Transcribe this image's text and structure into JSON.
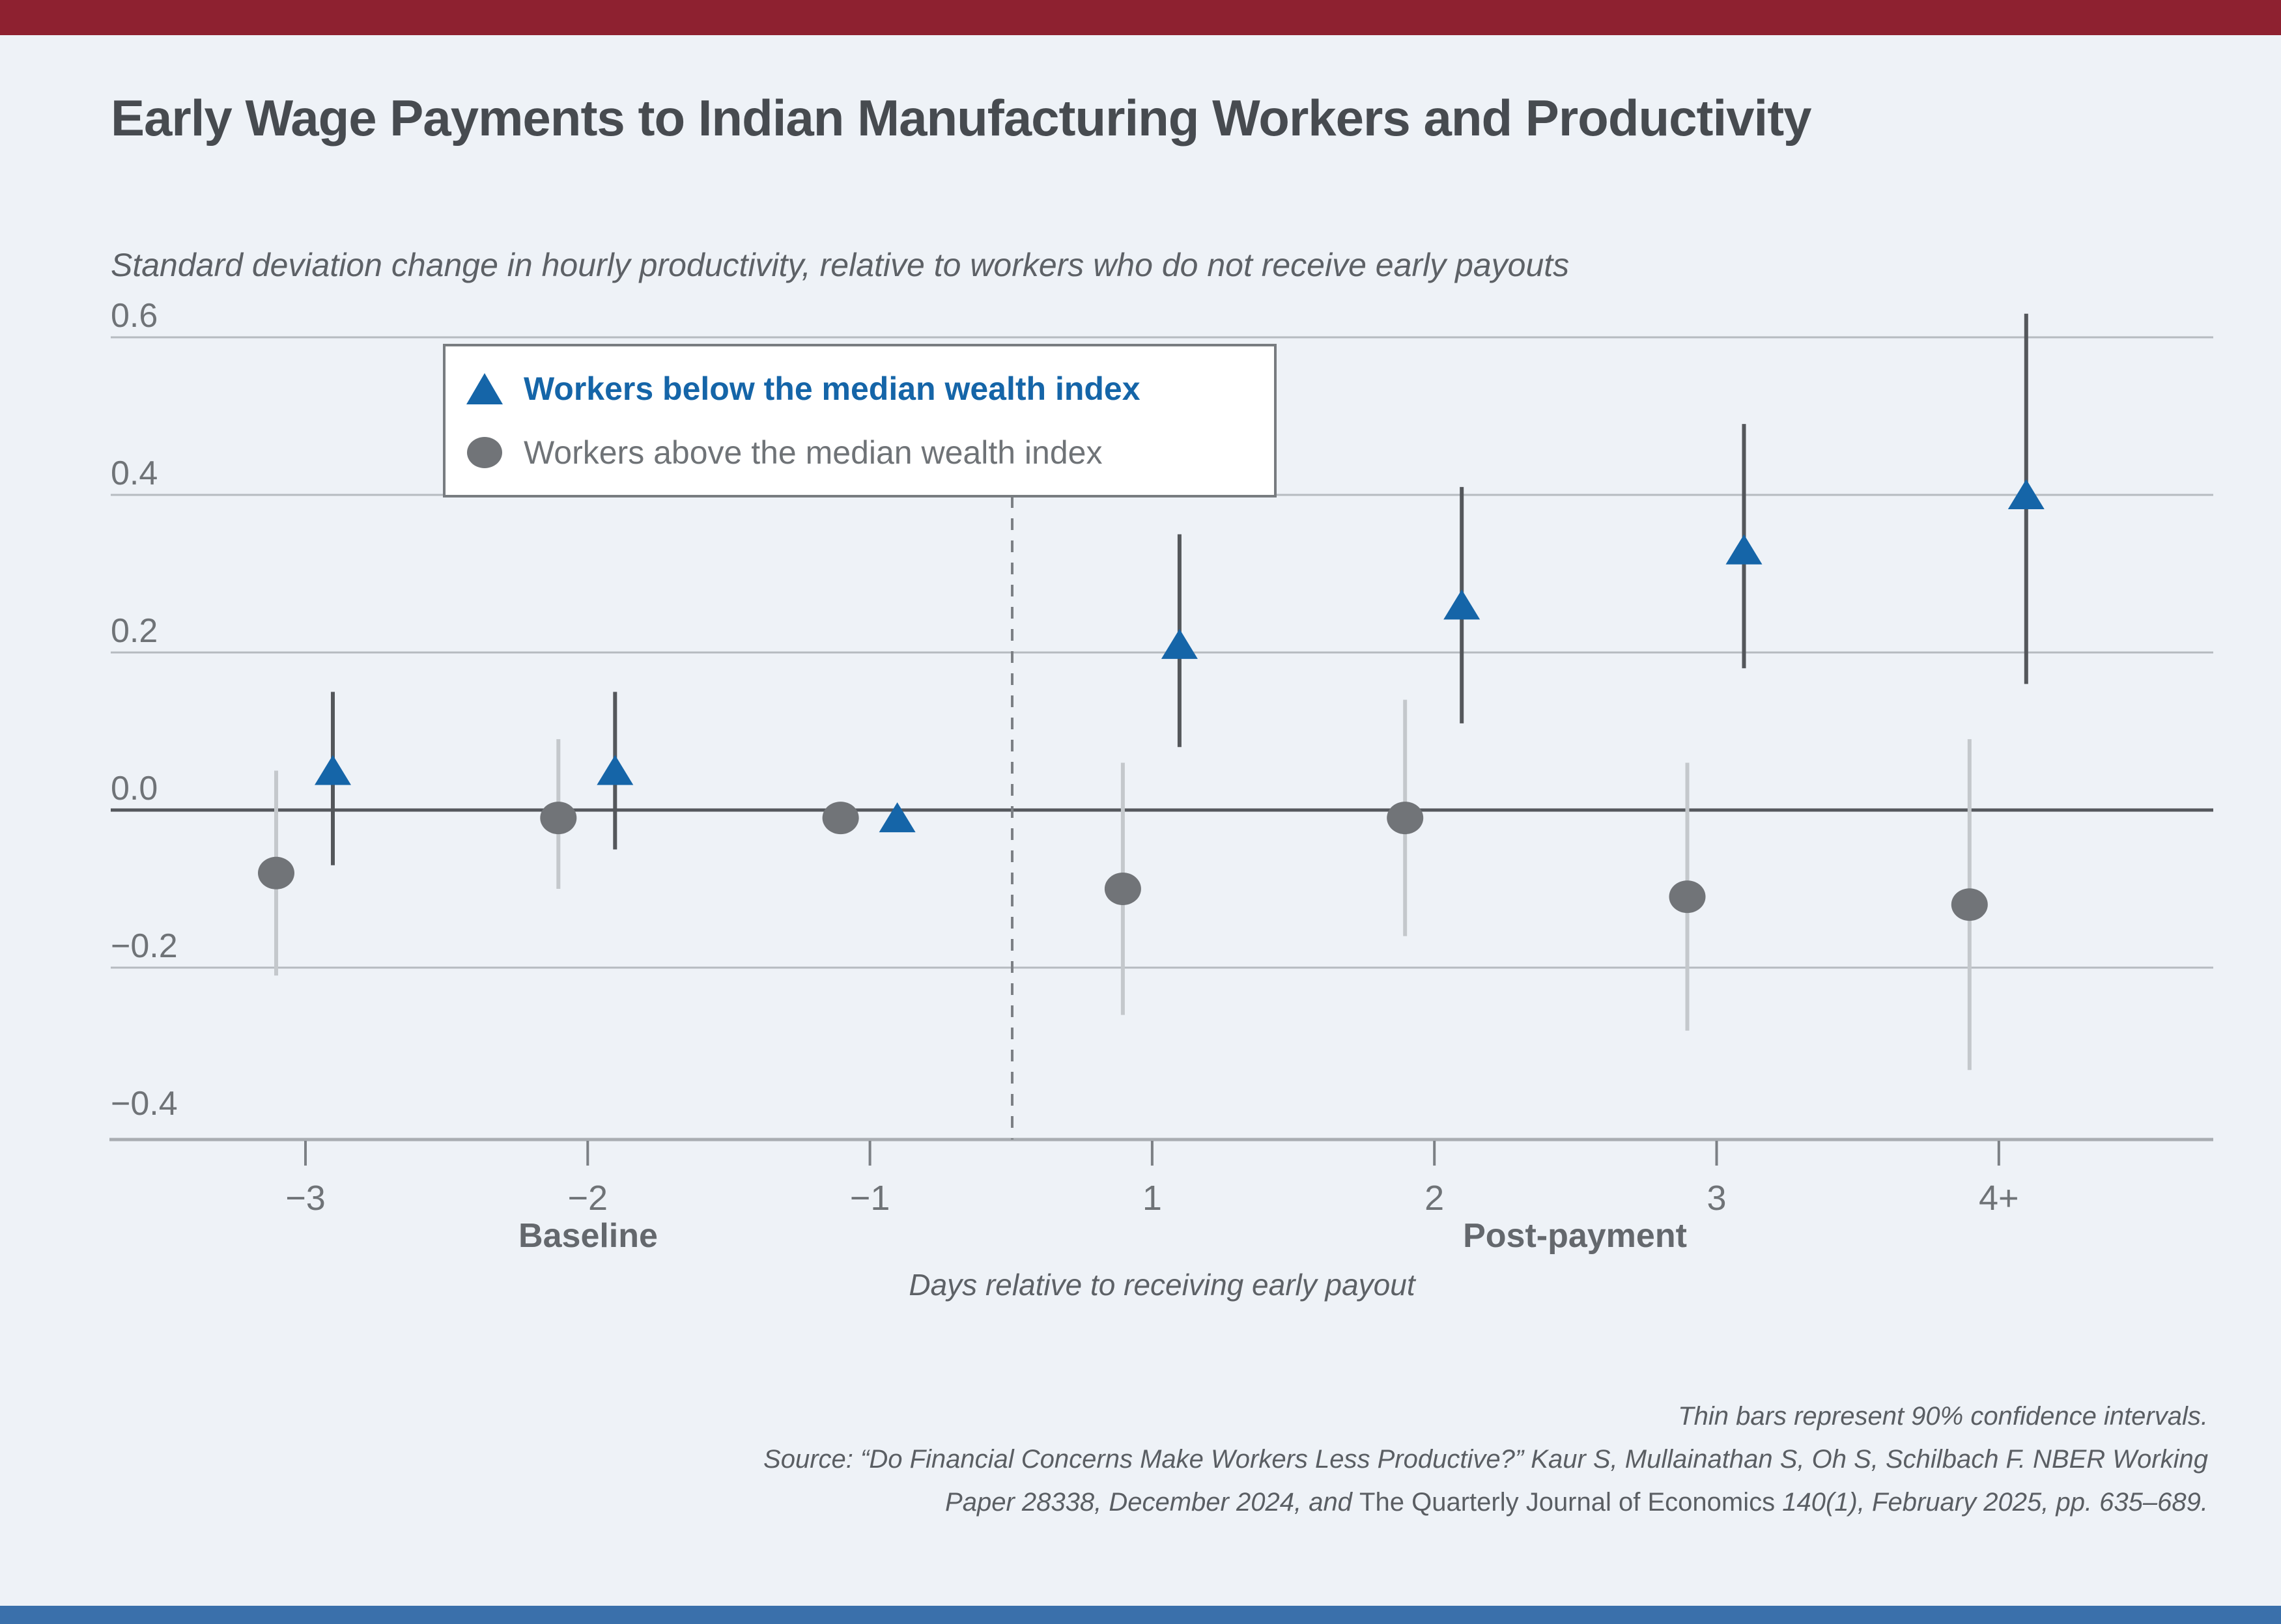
{
  "page": {
    "title": "Early Wage Payments to Indian Manufacturing Workers and Productivity",
    "subtitle": "Standard deviation change in hourly productivity, relative to workers who do not receive early payouts",
    "accent_top_color": "#8e2130",
    "accent_bottom_color": "#3a70ab",
    "background_color": "#eef2f7"
  },
  "legend": {
    "below_label": "Workers below the median wealth index",
    "above_label": "Workers above the median wealth index",
    "below_color": "#1565a8",
    "above_color": "#717478"
  },
  "axis_labels": {
    "baseline": "Baseline",
    "post_payment": "Post-payment",
    "x_title": "Days relative to receiving early payout"
  },
  "footer": {
    "line1": "Thin bars represent 90% confidence intervals.",
    "line2": "Source: “Do Financial Concerns Make Workers Less Productive?” Kaur S, Mullainathan S, Oh S, Schilbach F. NBER Working",
    "line3a": "Paper 28338, December 2024, and ",
    "line3b": "The Quarterly Journal of Economics",
    "line3c": " 140(1), February 2025, pp. 635–689."
  },
  "chart_data": {
    "type": "scatter",
    "title": "Early Wage Payments to Indian Manufacturing Workers and Productivity",
    "ylabel": "Standard deviation change in hourly productivity, relative to workers who do not receive early payouts",
    "xlabel": "Days relative to receiving early payout",
    "categories": [
      "−3",
      "−2",
      "−1",
      "1",
      "2",
      "3",
      "4+"
    ],
    "yticks": [
      "0.6",
      "0.4",
      "0.2",
      "0.0",
      "−0.2",
      "−0.4"
    ],
    "ytick_values": [
      0.6,
      0.4,
      0.2,
      0.0,
      -0.2,
      -0.4
    ],
    "gridline_values": [
      0.6,
      0.4,
      0.2,
      0.0,
      -0.2
    ],
    "ylim": [
      -0.45,
      0.65
    ],
    "divider_between": [
      "−1",
      "1"
    ],
    "legend_position": "upper-left",
    "series": [
      {
        "name": "Workers below the median wealth index",
        "marker": "triangle",
        "color": "#1565a8",
        "ci_color": "#54575b",
        "values": [
          0.05,
          0.05,
          -0.01,
          0.21,
          0.26,
          0.33,
          0.4
        ],
        "ci_low": [
          -0.07,
          -0.05,
          null,
          0.08,
          0.11,
          0.18,
          0.16
        ],
        "ci_high": [
          0.15,
          0.15,
          null,
          0.35,
          0.41,
          0.49,
          0.63
        ]
      },
      {
        "name": "Workers above the median wealth index",
        "marker": "circle",
        "color": "#717478",
        "ci_color": "#c4c8cc",
        "values": [
          -0.08,
          -0.01,
          -0.01,
          -0.1,
          -0.01,
          -0.11,
          -0.12
        ],
        "ci_low": [
          -0.21,
          -0.1,
          null,
          -0.26,
          -0.16,
          -0.28,
          -0.33
        ],
        "ci_high": [
          0.05,
          0.09,
          null,
          0.06,
          0.14,
          0.06,
          0.09
        ]
      }
    ],
    "note": "Thin bars represent 90% confidence intervals."
  }
}
